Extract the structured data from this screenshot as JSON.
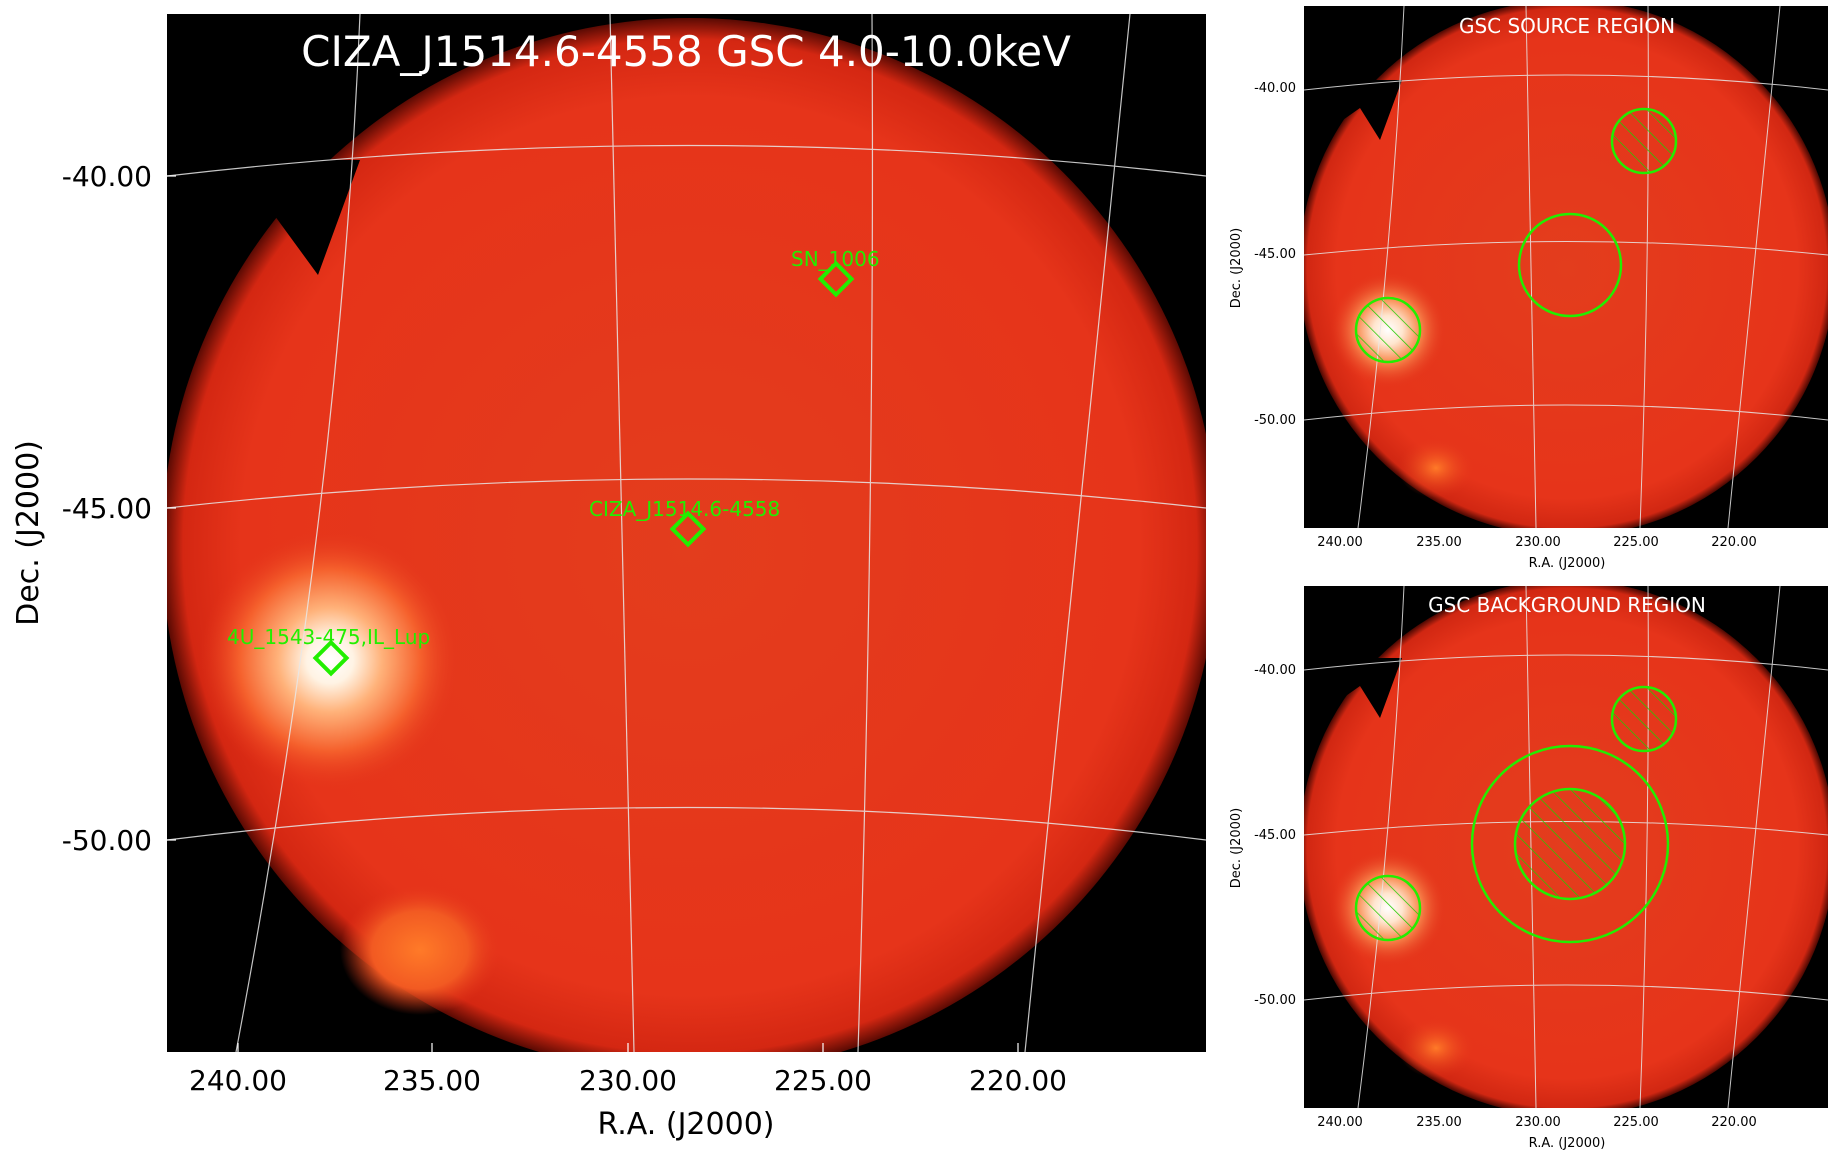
{
  "main": {
    "title": "CIZA_J1514.6-4558 GSC 4.0-10.0keV",
    "xlabel": "R.A. (J2000)",
    "ylabel": "Dec. (J2000)",
    "xticks": [
      "240.00",
      "235.00",
      "230.00",
      "225.00",
      "220.00"
    ],
    "yticks": [
      "-40.00",
      "-45.00",
      "-50.00"
    ],
    "sources": [
      {
        "name": "SN_1006"
      },
      {
        "name": "CIZA_J1514.6-4558"
      },
      {
        "name": "4U_1543-475,IL_Lup"
      }
    ]
  },
  "source_panel": {
    "title": "GSC SOURCE REGION",
    "xlabel": "R.A. (J2000)",
    "ylabel": "Dec. (J2000)",
    "xticks": [
      "240.00",
      "235.00",
      "230.00",
      "225.00",
      "220.00"
    ],
    "yticks": [
      "-40.00",
      "-45.00",
      "-50.00"
    ]
  },
  "background_panel": {
    "title": "GSC BACKGROUND REGION",
    "xlabel": "R.A. (J2000)",
    "ylabel": "Dec. (J2000)",
    "xticks": [
      "240.00",
      "235.00",
      "230.00",
      "225.00",
      "220.00"
    ],
    "yticks": [
      "-40.00",
      "-45.00",
      "-50.00"
    ]
  },
  "colors": {
    "field": "#e8331c",
    "background": "#000000",
    "marker": "#22ee00",
    "grid": "#dddddd"
  }
}
